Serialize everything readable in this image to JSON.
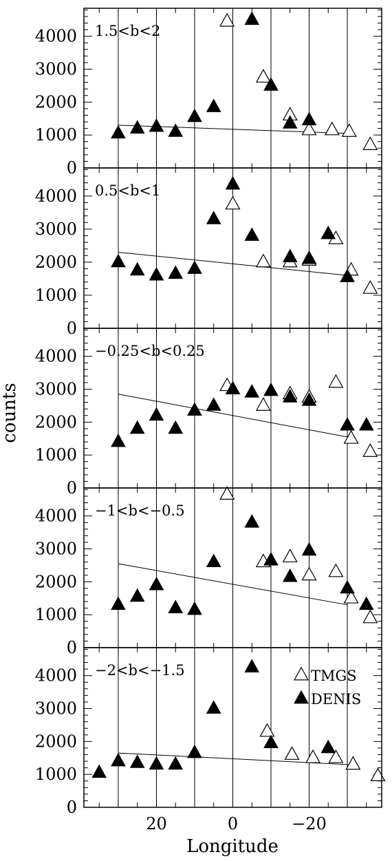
{
  "chart_data": {
    "type": "scatter",
    "xlabel": "Longitude",
    "ylabel": "counts",
    "xlim": [
      39,
      -39
    ],
    "xticks": [
      20,
      0,
      -20
    ],
    "xtick_labels": [
      "20",
      "0",
      "−20"
    ],
    "ylim": [
      0,
      4850
    ],
    "yticks": [
      0,
      1000,
      2000,
      3000,
      4000
    ],
    "ytick_labels": [
      "0",
      "1000",
      "2000",
      "3000",
      "4000"
    ],
    "vertical_lines_x": [
      30,
      20,
      10,
      0,
      -10,
      -20,
      -30
    ],
    "legend": {
      "position": "top-right",
      "entries": [
        {
          "label": "TMGS",
          "marker": "open-triangle"
        },
        {
          "label": "DENIS",
          "marker": "filled-triangle"
        }
      ]
    },
    "panels": [
      {
        "label": "1.5<b<2",
        "tmgs": [
          [
            -36,
            700
          ],
          [
            -30.5,
            1100
          ],
          [
            -26,
            1150
          ],
          [
            -20,
            1150
          ],
          [
            -15,
            1600
          ],
          [
            -8,
            2750
          ],
          [
            1.5,
            4450
          ]
        ],
        "denis": [
          [
            -20,
            1450
          ],
          [
            -15,
            1350
          ],
          [
            -10,
            2500
          ],
          [
            -5,
            4500
          ],
          [
            5,
            1850
          ],
          [
            10,
            1550
          ],
          [
            15,
            1100
          ],
          [
            20,
            1250
          ],
          [
            25,
            1200
          ],
          [
            30,
            1050
          ]
        ],
        "fit": {
          "x": [
            30,
            -30
          ],
          "y": [
            1300,
            1050
          ]
        }
      },
      {
        "label": "0.5<b<1",
        "tmgs": [
          [
            -36,
            1200
          ],
          [
            -31,
            1750
          ],
          [
            -27,
            2700
          ],
          [
            -20,
            2050
          ],
          [
            -15,
            2000
          ],
          [
            -8,
            2000
          ],
          [
            0,
            3750
          ]
        ],
        "denis": [
          [
            -30,
            1550
          ],
          [
            -25,
            2850
          ],
          [
            -20,
            2100
          ],
          [
            -15,
            2150
          ],
          [
            -5,
            2800
          ],
          [
            0,
            4350
          ],
          [
            5,
            3300
          ],
          [
            10,
            1800
          ],
          [
            15,
            1650
          ],
          [
            20,
            1600
          ],
          [
            25,
            1750
          ],
          [
            30,
            2000
          ]
        ],
        "fit": {
          "x": [
            30,
            -30
          ],
          "y": [
            2300,
            1600
          ]
        }
      },
      {
        "label": "−0.25<b<0.25",
        "tmgs": [
          [
            -36,
            1100
          ],
          [
            -31,
            1500
          ],
          [
            -27,
            3200
          ],
          [
            -20,
            2750
          ],
          [
            -15,
            2850
          ],
          [
            -8,
            2500
          ],
          [
            1.5,
            3100
          ]
        ],
        "denis": [
          [
            -35,
            1900
          ],
          [
            -30,
            1900
          ],
          [
            -20,
            2650
          ],
          [
            -15,
            2750
          ],
          [
            -10,
            2950
          ],
          [
            -5,
            2900
          ],
          [
            0,
            3000
          ],
          [
            5,
            2500
          ],
          [
            10,
            2350
          ],
          [
            15,
            1800
          ],
          [
            20,
            2200
          ],
          [
            25,
            1800
          ],
          [
            30,
            1400
          ]
        ],
        "fit": {
          "x": [
            30,
            -30
          ],
          "y": [
            2850,
            1550
          ]
        }
      },
      {
        "label": "−1<b<−0.5",
        "tmgs": [
          [
            -36,
            900
          ],
          [
            -31,
            1500
          ],
          [
            -27,
            2300
          ],
          [
            -20,
            2200
          ],
          [
            -15,
            2750
          ],
          [
            -8,
            2600
          ],
          [
            1.5,
            4650
          ]
        ],
        "denis": [
          [
            -35,
            1300
          ],
          [
            -30,
            1800
          ],
          [
            -20,
            2950
          ],
          [
            -15,
            2150
          ],
          [
            -10,
            2650
          ],
          [
            -5,
            3800
          ],
          [
            5,
            2600
          ],
          [
            10,
            1150
          ],
          [
            15,
            1200
          ],
          [
            20,
            1900
          ],
          [
            25,
            1550
          ],
          [
            30,
            1300
          ]
        ],
        "fit": {
          "x": [
            30,
            -30
          ],
          "y": [
            2550,
            1300
          ]
        }
      },
      {
        "label": "−2<b<−1.5",
        "tmgs": [
          [
            -38,
            950
          ],
          [
            -31.5,
            1300
          ],
          [
            -27,
            1500
          ],
          [
            -21,
            1500
          ],
          [
            -15.5,
            1600
          ],
          [
            -9,
            2300
          ]
        ],
        "denis": [
          [
            -25,
            1800
          ],
          [
            -10,
            1950
          ],
          [
            -5,
            4250
          ],
          [
            5,
            3000
          ],
          [
            10,
            1650
          ],
          [
            15,
            1300
          ],
          [
            20,
            1300
          ],
          [
            25,
            1350
          ],
          [
            30,
            1400
          ],
          [
            35,
            1050
          ]
        ],
        "fit": {
          "x": [
            30,
            -30
          ],
          "y": [
            1650,
            1300
          ]
        }
      }
    ]
  }
}
